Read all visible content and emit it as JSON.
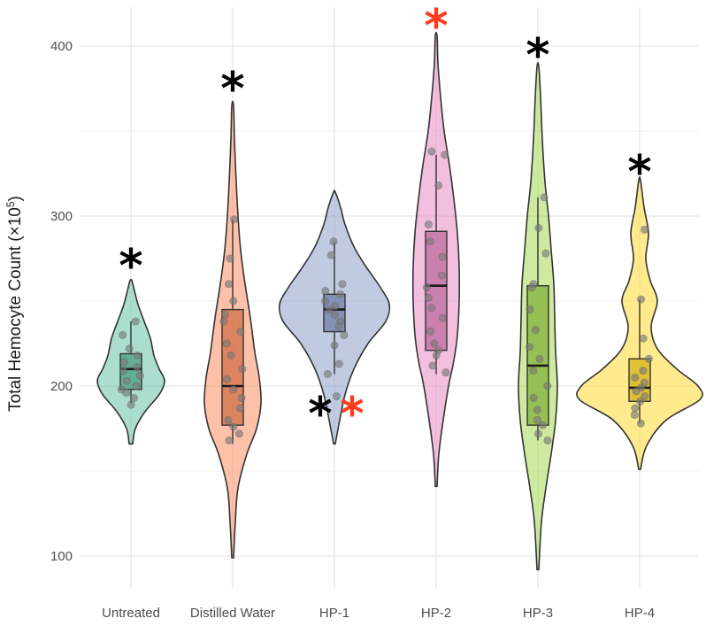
{
  "chart_data": {
    "type": "violin",
    "title": "",
    "xlabel": "",
    "ylabel": "Total Hemocyte Count (×10",
    "ylabel_sup": "5",
    "ylabel_close": ")",
    "ylim": [
      80,
      420
    ],
    "yticks": [
      100,
      200,
      300,
      400
    ],
    "grid": true,
    "legend": "none",
    "categories": [
      "Untreated",
      "Distilled Water",
      "HP-1",
      "HP-2",
      "HP-3",
      "HP-4"
    ],
    "series": [
      {
        "color": "#66c2a5",
        "box_color": "#66c2a5",
        "violin_range": [
          166,
          262
        ],
        "violin_profile": [
          [
            166,
            2
          ],
          [
            175,
            5
          ],
          [
            185,
            16
          ],
          [
            195,
            32
          ],
          [
            203,
            38
          ],
          [
            210,
            32
          ],
          [
            218,
            26
          ],
          [
            228,
            22
          ],
          [
            238,
            15
          ],
          [
            248,
            8
          ],
          [
            256,
            4
          ],
          [
            262,
            1
          ]
        ],
        "box": {
          "q1": 198,
          "median": 210,
          "q3": 219,
          "whisker_low": 190,
          "whisker_high": 238
        },
        "points": [
          238,
          230,
          222,
          218,
          214,
          211,
          209,
          206,
          203,
          200,
          198,
          196,
          193,
          189
        ],
        "markers": [
          {
            "symbol": "*",
            "color": "#000000",
            "y": 273,
            "dx": 0
          }
        ]
      },
      {
        "color": "#fc8d62",
        "box_color": "#fc8d62",
        "violin_range": [
          99,
          365
        ],
        "violin_profile": [
          [
            99,
            1
          ],
          [
            120,
            3
          ],
          [
            140,
            6
          ],
          [
            160,
            16
          ],
          [
            175,
            27
          ],
          [
            190,
            32
          ],
          [
            205,
            30
          ],
          [
            220,
            25
          ],
          [
            240,
            20
          ],
          [
            260,
            14
          ],
          [
            280,
            9
          ],
          [
            300,
            6
          ],
          [
            320,
            4
          ],
          [
            345,
            2
          ],
          [
            365,
            1
          ]
        ],
        "box": {
          "q1": 177,
          "median": 200,
          "q3": 245,
          "whisker_low": 166,
          "whisker_high": 298
        },
        "points": [
          298,
          275,
          260,
          250,
          242,
          238,
          232,
          225,
          218,
          210,
          204,
          198,
          193,
          187,
          180,
          176,
          172,
          168
        ],
        "markers": [
          {
            "symbol": "*",
            "color": "#000000",
            "y": 377,
            "dx": 0
          }
        ]
      },
      {
        "color": "#8da0cb",
        "box_color": "#8da0cb",
        "violin_range": [
          166,
          314
        ],
        "violin_profile": [
          [
            166,
            1
          ],
          [
            180,
            6
          ],
          [
            195,
            12
          ],
          [
            210,
            22
          ],
          [
            225,
            38
          ],
          [
            238,
            58
          ],
          [
            248,
            62
          ],
          [
            258,
            52
          ],
          [
            270,
            36
          ],
          [
            282,
            22
          ],
          [
            295,
            12
          ],
          [
            305,
            7
          ],
          [
            314,
            1
          ]
        ],
        "box": {
          "q1": 232,
          "median": 245,
          "q3": 254,
          "whisker_low": 207,
          "whisker_high": 285
        },
        "points": [
          285,
          277,
          260,
          256,
          254,
          250,
          247,
          245,
          242,
          238,
          235,
          230,
          224,
          213,
          207,
          194
        ],
        "markers": [
          {
            "symbol": "*",
            "color": "#000000",
            "y": 186,
            "dx": -16
          },
          {
            "symbol": "*",
            "color": "#ff3b1a",
            "y": 186,
            "dx": 20
          }
        ]
      },
      {
        "color": "#e78ac3",
        "box_color": "#e78ac3",
        "violin_range": [
          141,
          406
        ],
        "violin_profile": [
          [
            141,
            1
          ],
          [
            160,
            3
          ],
          [
            180,
            8
          ],
          [
            200,
            14
          ],
          [
            215,
            20
          ],
          [
            230,
            24
          ],
          [
            250,
            26
          ],
          [
            270,
            26
          ],
          [
            290,
            24
          ],
          [
            310,
            20
          ],
          [
            330,
            15
          ],
          [
            350,
            9
          ],
          [
            370,
            5
          ],
          [
            390,
            2
          ],
          [
            406,
            1
          ]
        ],
        "box": {
          "q1": 221,
          "median": 259,
          "q3": 291,
          "whisker_low": 207,
          "whisker_high": 336
        },
        "points": [
          338,
          336,
          318,
          295,
          285,
          276,
          265,
          258,
          252,
          246,
          240,
          232,
          225,
          221,
          218,
          212,
          208
        ],
        "markers": [
          {
            "symbol": "*",
            "color": "#ff3b1a",
            "y": 414,
            "dx": 0
          }
        ]
      },
      {
        "color": "#a6d854",
        "box_color": "#a6d854",
        "violin_range": [
          92,
          388
        ],
        "violin_profile": [
          [
            92,
            1
          ],
          [
            120,
            4
          ],
          [
            140,
            9
          ],
          [
            160,
            15
          ],
          [
            180,
            20
          ],
          [
            200,
            22
          ],
          [
            220,
            20
          ],
          [
            240,
            19
          ],
          [
            260,
            18
          ],
          [
            280,
            15
          ],
          [
            300,
            12
          ],
          [
            320,
            8
          ],
          [
            345,
            5
          ],
          [
            370,
            3
          ],
          [
            388,
            1
          ]
        ],
        "box": {
          "q1": 177,
          "median": 212,
          "q3": 259,
          "whisker_low": 168,
          "whisker_high": 311
        },
        "points": [
          311,
          293,
          278,
          260,
          258,
          245,
          233,
          223,
          216,
          209,
          200,
          193,
          186,
          180,
          177,
          172,
          168
        ],
        "markers": [
          {
            "symbol": "*",
            "color": "#000000",
            "y": 397,
            "dx": 0
          }
        ]
      },
      {
        "color": "#ffd92f",
        "box_color": "#ffd92f",
        "violin_range": [
          151,
          321
        ],
        "violin_profile": [
          [
            151,
            1
          ],
          [
            165,
            8
          ],
          [
            180,
            30
          ],
          [
            192,
            68
          ],
          [
            200,
            66
          ],
          [
            210,
            42
          ],
          [
            222,
            20
          ],
          [
            235,
            13
          ],
          [
            250,
            20
          ],
          [
            262,
            12
          ],
          [
            275,
            7
          ],
          [
            290,
            10
          ],
          [
            305,
            5
          ],
          [
            321,
            1
          ]
        ],
        "box": {
          "q1": 191,
          "median": 199,
          "q3": 216,
          "whisker_low": 178,
          "whisker_high": 251
        },
        "points": [
          292,
          251,
          228,
          216,
          209,
          205,
          202,
          199,
          197,
          194,
          191,
          187,
          183,
          178
        ],
        "markers": [
          {
            "symbol": "*",
            "color": "#000000",
            "y": 328,
            "dx": 0
          }
        ]
      }
    ]
  }
}
